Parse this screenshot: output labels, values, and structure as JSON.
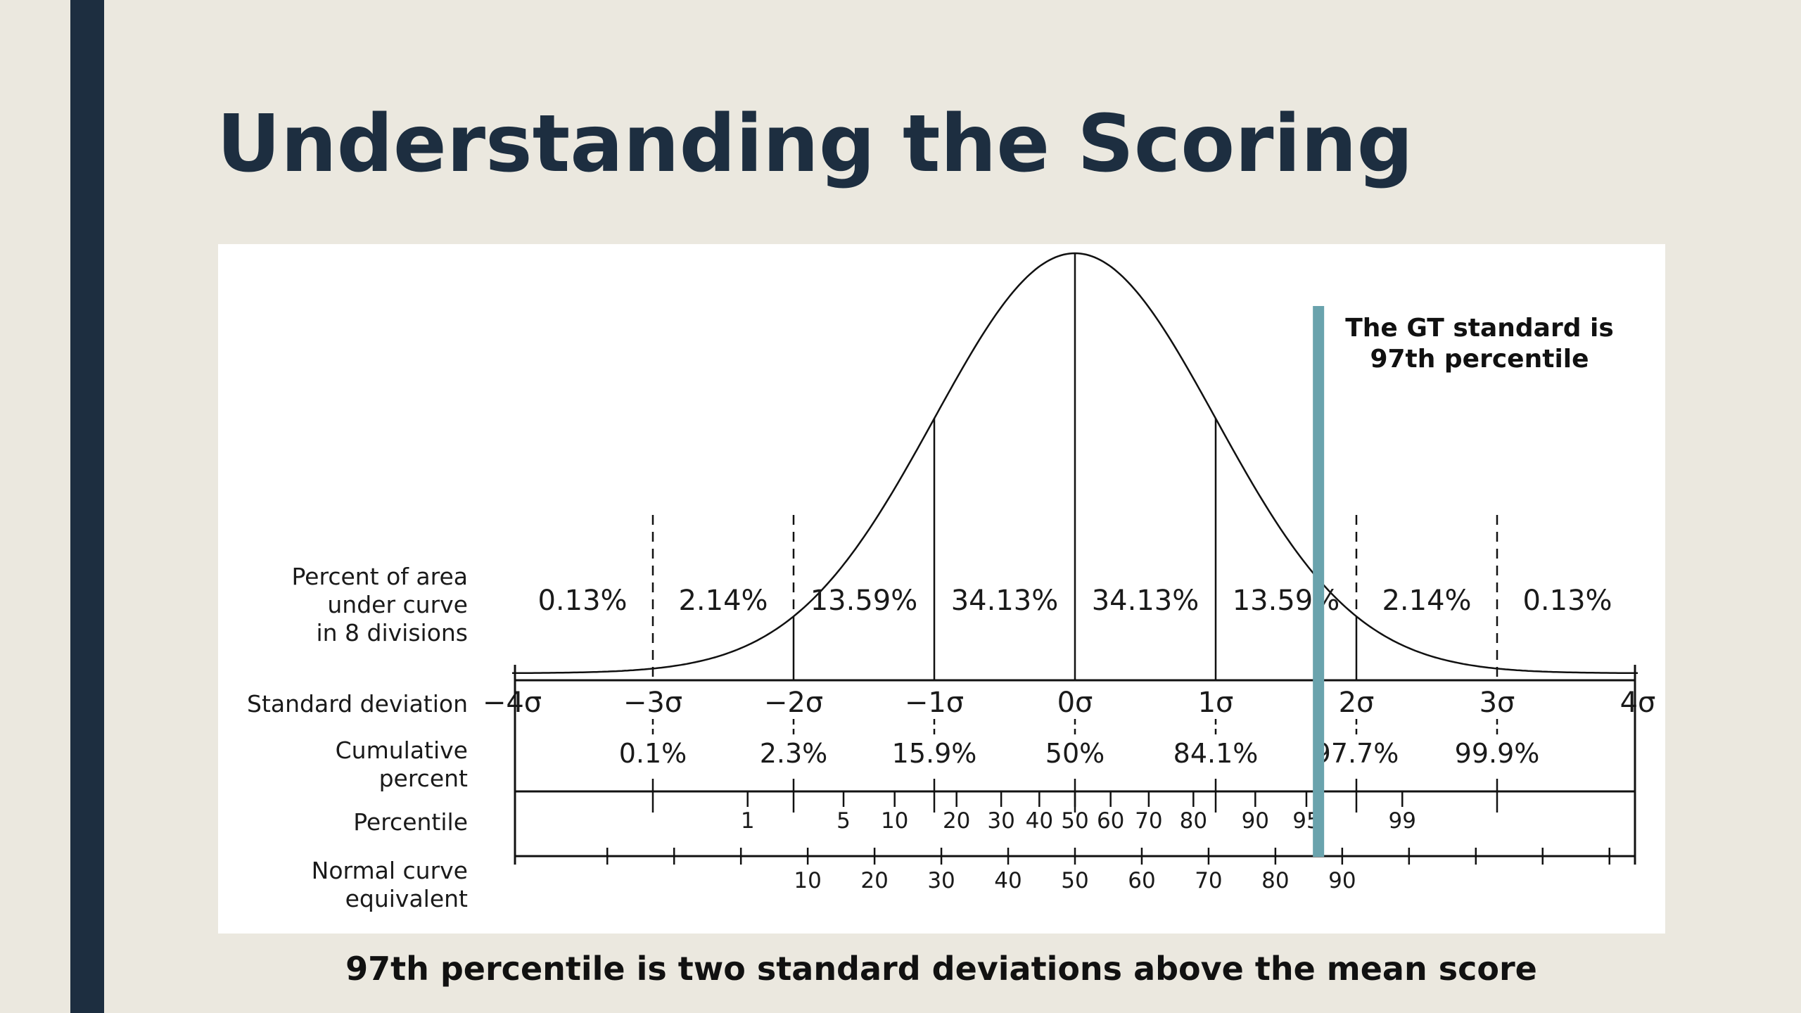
{
  "slide": {
    "title": "Understanding the Scoring",
    "caption": "97th percentile is two standard deviations above the mean score",
    "colors": {
      "background": "#ebe8df",
      "accent": "#1d2e40",
      "marker": "#6aa3ad"
    }
  },
  "figure": {
    "row_labels": {
      "area": [
        "Percent of area",
        "under curve",
        "in 8 divisions"
      ],
      "sd": [
        "Standard deviation"
      ],
      "cumulative": [
        "Cumulative",
        "percent"
      ],
      "percentile": [
        "Percentile"
      ],
      "nce": [
        "Normal curve",
        "equivalent"
      ]
    },
    "area_percents": [
      "0.13%",
      "2.14%",
      "13.59%",
      "34.13%",
      "34.13%",
      "13.59%",
      "2.14%",
      "0.13%"
    ],
    "sd_values": [
      -4,
      -3,
      -2,
      -1,
      0,
      1,
      2,
      3,
      4
    ],
    "sd_labels": [
      "−4σ",
      "−3σ",
      "−2σ",
      "−1σ",
      "0σ",
      "1σ",
      "2σ",
      "3σ",
      "4σ"
    ],
    "cumulative_percents": [
      "0.1%",
      "2.3%",
      "15.9%",
      "50%",
      "84.1%",
      "97.7%",
      "99.9%"
    ],
    "percentile_ticks": [
      1,
      5,
      10,
      20,
      30,
      40,
      50,
      60,
      70,
      80,
      90,
      95,
      99
    ],
    "percentile_labels": [
      "1",
      "5",
      "10",
      "20",
      "30",
      "40",
      "50",
      "60",
      "70",
      "80",
      "90",
      "95",
      "99"
    ],
    "nce_labels": [
      "10",
      "20",
      "30",
      "40",
      "50",
      "60",
      "70",
      "80",
      "90"
    ],
    "marker": {
      "percentile": 97,
      "text": [
        "The GT standard is",
        "97th percentile"
      ]
    }
  }
}
